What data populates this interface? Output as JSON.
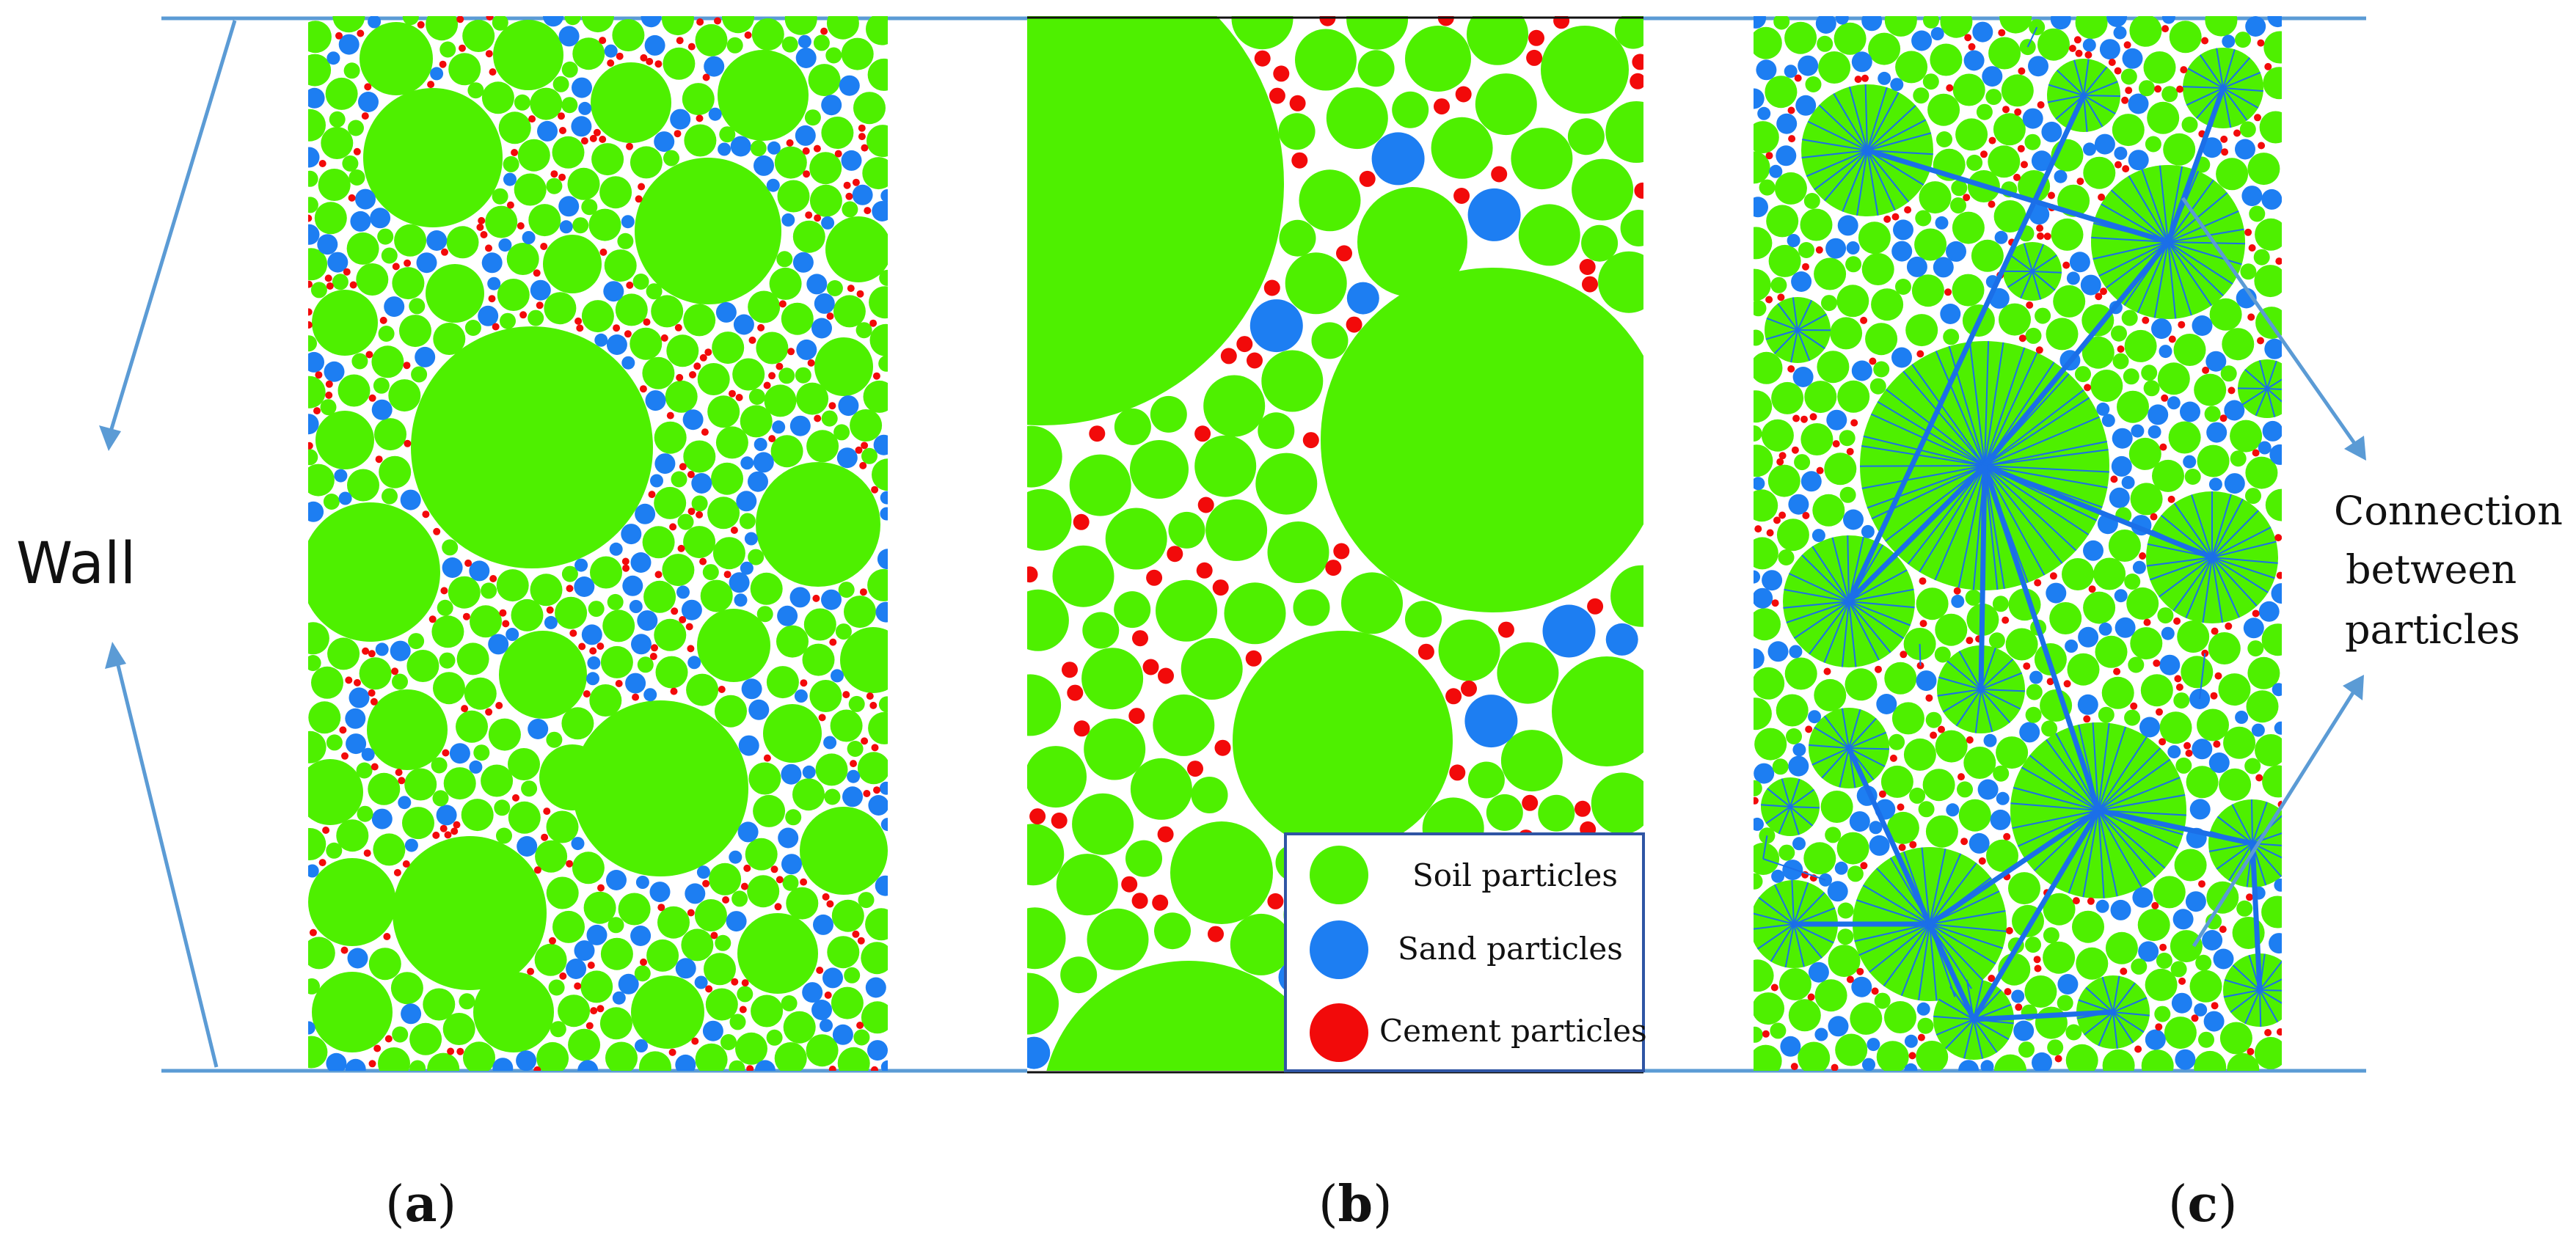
{
  "colors": {
    "soil": "#4ef000",
    "sand": "#1d7ef2",
    "cement": "#f20a0a",
    "wall": "#5b9bd5",
    "connection": "#1b6fe8",
    "box_border": "#2f55a4"
  },
  "labels": {
    "wall": "Wall",
    "connection_line1": "Connection",
    "connection_line2": "between",
    "connection_line3": "particles",
    "panel_a": "a",
    "panel_b": "b",
    "panel_c": "c"
  },
  "legend": {
    "soil": "Soil particles",
    "sand": "Sand particles",
    "cement": "Cement particles"
  }
}
